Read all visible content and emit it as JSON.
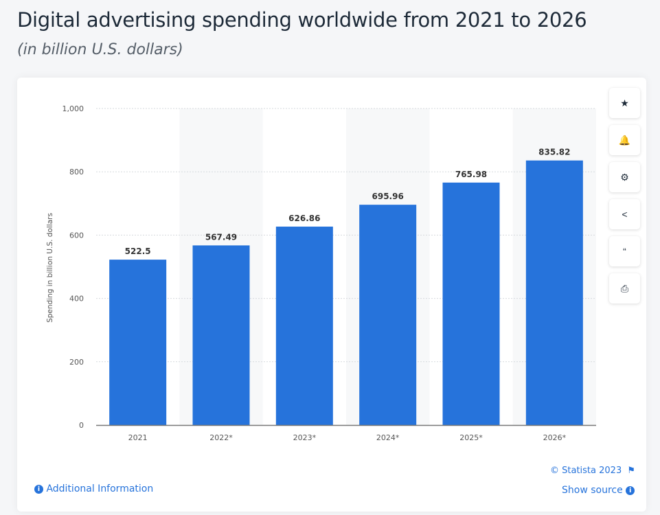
{
  "header": {
    "title": "Digital advertising spending worldwide from 2021 to 2026",
    "subtitle": "(in billion U.S. dollars)"
  },
  "chart_data": {
    "type": "bar",
    "categories": [
      "2021",
      "2022*",
      "2023*",
      "2024*",
      "2025*",
      "2026*"
    ],
    "values": [
      522.5,
      567.49,
      626.86,
      695.96,
      765.98,
      835.82
    ],
    "value_labels": [
      "522.5",
      "567.49",
      "626.86",
      "695.96",
      "765.98",
      "835.82"
    ],
    "ylabel": "Spending in billion U.S. dollars",
    "xlabel": "",
    "ylim": [
      0,
      1000
    ],
    "yticks": [
      0,
      200,
      400,
      600,
      800,
      1000
    ],
    "ytick_labels": [
      "0",
      "200",
      "400",
      "600",
      "800",
      "1,000"
    ],
    "grid": true,
    "bar_color": "#2673db"
  },
  "toolbar": [
    {
      "icon": "star-icon",
      "glyph": "★"
    },
    {
      "icon": "bell-icon",
      "glyph": "🔔"
    },
    {
      "icon": "gear-icon",
      "glyph": "⚙"
    },
    {
      "icon": "share-icon",
      "glyph": "<"
    },
    {
      "icon": "quote-icon",
      "glyph": "“"
    },
    {
      "icon": "print-icon",
      "glyph": "⎙"
    }
  ],
  "footer": {
    "additional_info": "Additional Information",
    "copyright": "© Statista 2023",
    "show_source": "Show source"
  },
  "colors": {
    "accent": "#2673db"
  }
}
